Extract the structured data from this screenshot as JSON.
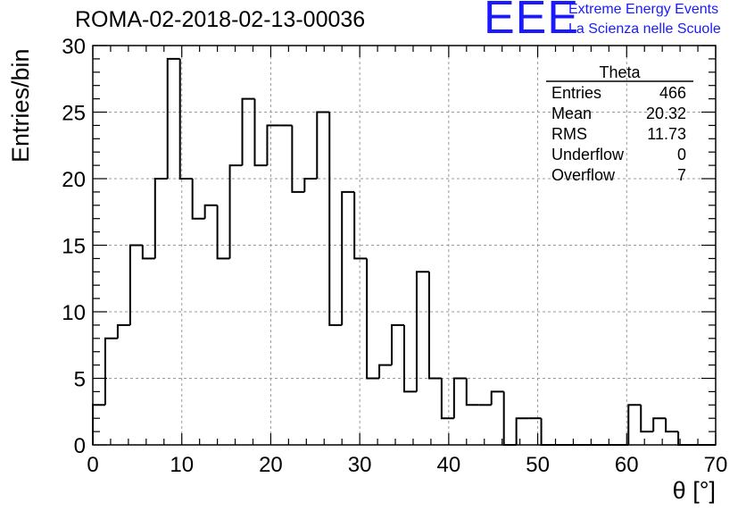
{
  "chart_data": {
    "type": "bar",
    "title": "ROMA-02-2018-02-13-00036",
    "xlabel": "θ [°]",
    "ylabel": "Entries/bin",
    "xlim": [
      0,
      70
    ],
    "ylim": [
      0,
      30
    ],
    "xticks": [
      "0",
      "10",
      "20",
      "30",
      "40",
      "50",
      "60",
      "70"
    ],
    "yticks": [
      "0",
      "5",
      "10",
      "15",
      "20",
      "25",
      "30"
    ],
    "grid": true,
    "bin_width": 1.4,
    "values": [
      3,
      8,
      9,
      15,
      14,
      20,
      29,
      20,
      17,
      18,
      14,
      21,
      26,
      21,
      24,
      24,
      19,
      20,
      25,
      9,
      19,
      14,
      5,
      6,
      9,
      4,
      13,
      5,
      2,
      5,
      3,
      3,
      4,
      0,
      2,
      2,
      0,
      0,
      0,
      0,
      0,
      0,
      0,
      3,
      1,
      2,
      1,
      0,
      0,
      0
    ],
    "stats": {
      "name": "Theta",
      "rows": [
        {
          "label": "Entries",
          "value": "466"
        },
        {
          "label": "Mean",
          "value": "20.32"
        },
        {
          "label": "RMS",
          "value": "11.73"
        },
        {
          "label": "Underflow",
          "value": "0"
        },
        {
          "label": "Overflow",
          "value": "7"
        }
      ]
    }
  },
  "logo": {
    "mark": "EEE",
    "line1": "Extreme Energy Events",
    "line2": "La Scienza nelle Scuole"
  }
}
